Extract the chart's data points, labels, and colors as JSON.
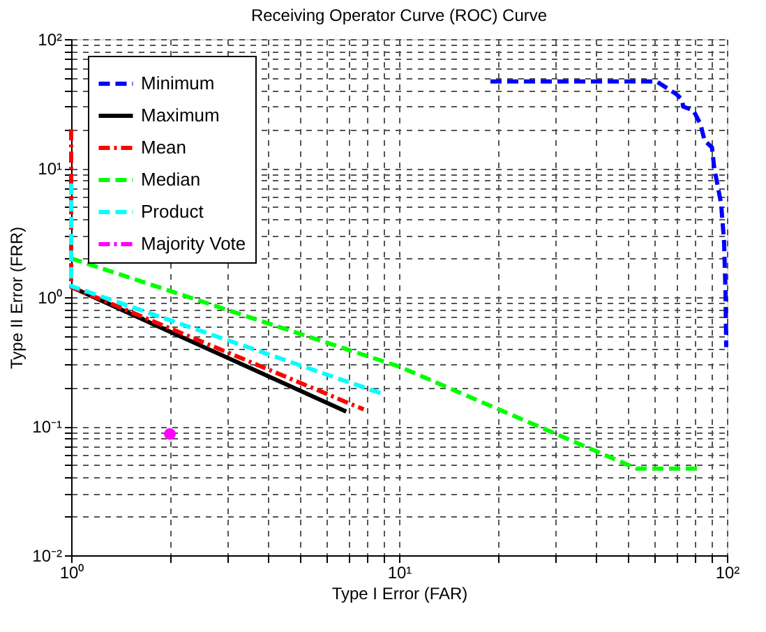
{
  "chart_data": {
    "type": "line",
    "title": "Receiving Operator Curve (ROC) Curve",
    "xlabel": "Type I Error (FAR)",
    "ylabel": "Type II Error (FRR)",
    "log": "xy",
    "grid": true,
    "legend": "top left",
    "xlim": [
      1,
      100
    ],
    "ylim": [
      0.01,
      100
    ],
    "xticks": [
      {
        "value": 1,
        "label": "10⁰"
      },
      {
        "value": 2,
        "label": null
      },
      {
        "value": 3,
        "label": null
      },
      {
        "value": 4,
        "label": null
      },
      {
        "value": 5,
        "label": null
      },
      {
        "value": 6,
        "label": null
      },
      {
        "value": 7,
        "label": null
      },
      {
        "value": 8,
        "label": null
      },
      {
        "value": 9,
        "label": null
      },
      {
        "value": 10,
        "label": "10¹"
      },
      {
        "value": 20,
        "label": null
      },
      {
        "value": 30,
        "label": null
      },
      {
        "value": 40,
        "label": null
      },
      {
        "value": 50,
        "label": null
      },
      {
        "value": 60,
        "label": null
      },
      {
        "value": 70,
        "label": null
      },
      {
        "value": 80,
        "label": null
      },
      {
        "value": 90,
        "label": null
      },
      {
        "value": 100,
        "label": "10²"
      }
    ],
    "yticks": [
      {
        "value": 0.01,
        "label": "10⁻²"
      },
      {
        "value": 0.02,
        "label": null
      },
      {
        "value": 0.03,
        "label": null
      },
      {
        "value": 0.04,
        "label": null
      },
      {
        "value": 0.05,
        "label": null
      },
      {
        "value": 0.06,
        "label": null
      },
      {
        "value": 0.07,
        "label": null
      },
      {
        "value": 0.08,
        "label": null
      },
      {
        "value": 0.09,
        "label": null
      },
      {
        "value": 0.1,
        "label": "10⁻¹"
      },
      {
        "value": 0.2,
        "label": null
      },
      {
        "value": 0.3,
        "label": null
      },
      {
        "value": 0.4,
        "label": null
      },
      {
        "value": 0.5,
        "label": null
      },
      {
        "value": 0.6,
        "label": null
      },
      {
        "value": 0.7,
        "label": null
      },
      {
        "value": 0.8,
        "label": null
      },
      {
        "value": 0.9,
        "label": null
      },
      {
        "value": 1,
        "label": "10⁰"
      },
      {
        "value": 2,
        "label": null
      },
      {
        "value": 3,
        "label": null
      },
      {
        "value": 4,
        "label": null
      },
      {
        "value": 5,
        "label": null
      },
      {
        "value": 6,
        "label": null
      },
      {
        "value": 7,
        "label": null
      },
      {
        "value": 8,
        "label": null
      },
      {
        "value": 9,
        "label": null
      },
      {
        "value": 10,
        "label": "10¹"
      },
      {
        "value": 20,
        "label": null
      },
      {
        "value": 30,
        "label": null
      },
      {
        "value": 40,
        "label": null
      },
      {
        "value": 50,
        "label": null
      },
      {
        "value": 60,
        "label": null
      },
      {
        "value": 70,
        "label": null
      },
      {
        "value": 80,
        "label": null
      },
      {
        "value": 90,
        "label": null
      },
      {
        "value": 100,
        "label": "10²"
      }
    ],
    "series": [
      {
        "name": "Minimum",
        "color": "#0000ff",
        "line_style": "dashed",
        "x": [
          19,
          61,
          70,
          73,
          73.5,
          79,
          83,
          85.5,
          90,
          91.5,
          96,
          98,
          99,
          99.5
        ],
        "values": [
          47,
          47,
          37.5,
          34,
          30,
          28,
          22,
          16.3,
          14.5,
          10,
          5.3,
          2.7,
          1.1,
          0.41
        ]
      },
      {
        "name": "Maximum",
        "color": "#000000",
        "line_style": "solid",
        "x": [
          1,
          6.9
        ],
        "values": [
          1.2,
          0.13
        ]
      },
      {
        "name": "Mean",
        "color": "#ff0000",
        "line_style": "dashdot",
        "x": [
          1,
          1,
          7.8
        ],
        "values": [
          20,
          1.2,
          0.135
        ]
      },
      {
        "name": "Median",
        "color": "#00ff00",
        "line_style": "dashed",
        "x": [
          1,
          10,
          53,
          83
        ],
        "values": [
          2,
          0.29,
          0.047,
          0.047
        ]
      },
      {
        "name": "Product",
        "color": "#00ffff",
        "line_style": "dashed",
        "x": [
          1,
          1,
          8.8
        ],
        "values": [
          7.6,
          1.22,
          0.18
        ]
      },
      {
        "name": "Majority Vote",
        "color": "#ff00ff",
        "type": "scatter",
        "line_style": "dashdot",
        "marker": "circle",
        "x": [
          2
        ],
        "values": [
          0.087
        ]
      }
    ]
  }
}
